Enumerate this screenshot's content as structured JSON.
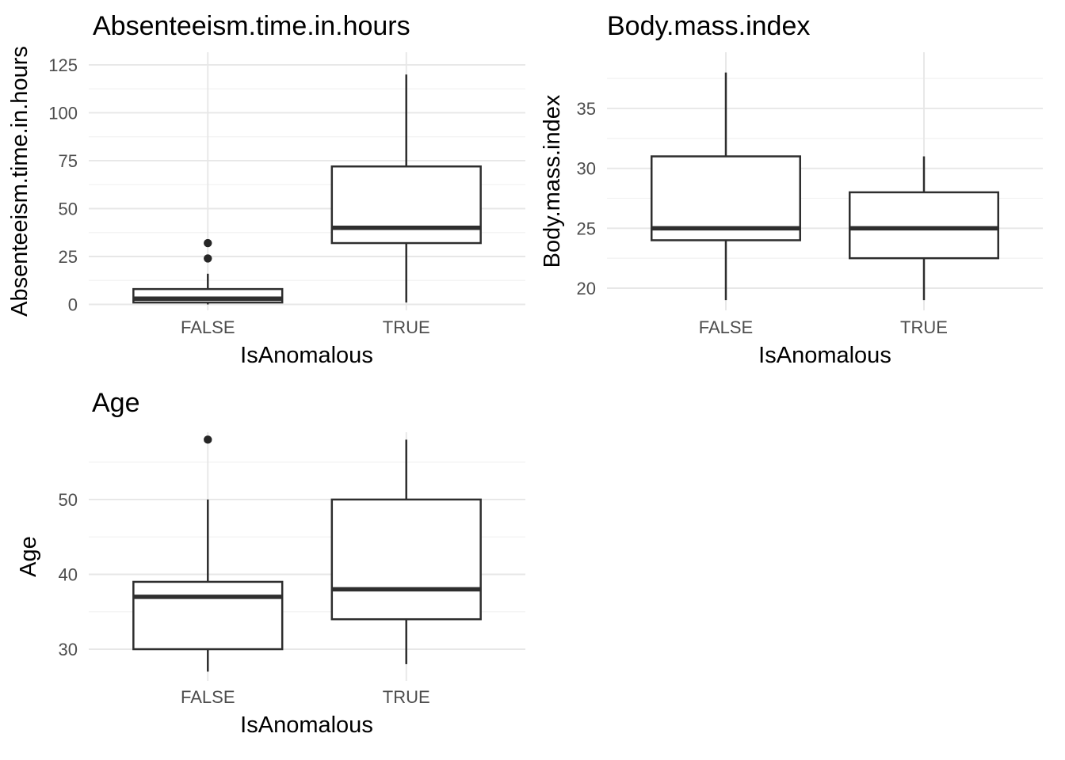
{
  "figure": {
    "background": "#ffffff",
    "x_axis_title": "IsAnomalous",
    "categories": [
      "FALSE",
      "TRUE"
    ]
  },
  "style": {
    "box_stroke_color": "#2e2e2e",
    "box_fill_color": "#ffffff",
    "outlier_color": "#262626",
    "grid_major_color": "#e7e7e7",
    "grid_minor_color": "#f2f2f2",
    "tick_label_color": "#4d4d4d",
    "title_color": "#000000"
  },
  "chart_data": [
    {
      "type": "boxplot",
      "title": "Absenteeism.time.in.hours",
      "xlabel": "IsAnomalous",
      "ylabel": "Absenteeism.time.in.hours",
      "categories": [
        "FALSE",
        "TRUE"
      ],
      "yticks": [
        0,
        25,
        50,
        75,
        100,
        125
      ],
      "minor_yticks": [
        12.5,
        37.5,
        62.5,
        87.5,
        112.5
      ],
      "ylim": [
        -3.1,
        131.6
      ],
      "grid": true,
      "legend": "none",
      "series": [
        {
          "category": "FALSE",
          "whisker_low": 0,
          "q1": 1,
          "median": 3,
          "q3": 8,
          "whisker_high": 16,
          "outliers": [
            24,
            32
          ]
        },
        {
          "category": "TRUE",
          "whisker_low": 1,
          "q1": 32,
          "median": 40,
          "q3": 72,
          "whisker_high": 120,
          "outliers": []
        }
      ]
    },
    {
      "type": "boxplot",
      "title": "Body.mass.index",
      "xlabel": "IsAnomalous",
      "ylabel": "Body.mass.index",
      "categories": [
        "FALSE",
        "TRUE"
      ],
      "yticks": [
        20,
        25,
        30,
        35
      ],
      "minor_yticks": [
        22.5,
        27.5,
        32.5,
        37.5
      ],
      "ylim": [
        18.15,
        39.69
      ],
      "grid": true,
      "legend": "none",
      "series": [
        {
          "category": "FALSE",
          "whisker_low": 19,
          "q1": 24,
          "median": 25,
          "q3": 31,
          "whisker_high": 38,
          "outliers": []
        },
        {
          "category": "TRUE",
          "whisker_low": 19,
          "q1": 22.5,
          "median": 25,
          "q3": 28,
          "whisker_high": 31,
          "outliers": []
        }
      ]
    },
    {
      "type": "boxplot",
      "title": "Age",
      "xlabel": "IsAnomalous",
      "ylabel": "Age",
      "categories": [
        "FALSE",
        "TRUE"
      ],
      "yticks": [
        30,
        40,
        50
      ],
      "minor_yticks": [
        35,
        45,
        55
      ],
      "ylim": [
        25.77,
        58.99
      ],
      "grid": true,
      "legend": "none",
      "series": [
        {
          "category": "FALSE",
          "whisker_low": 27,
          "q1": 30,
          "median": 37,
          "q3": 39,
          "whisker_high": 50,
          "outliers": [
            58
          ]
        },
        {
          "category": "TRUE",
          "whisker_low": 28,
          "q1": 34,
          "median": 38,
          "q3": 50,
          "whisker_high": 58,
          "outliers": []
        }
      ]
    }
  ]
}
